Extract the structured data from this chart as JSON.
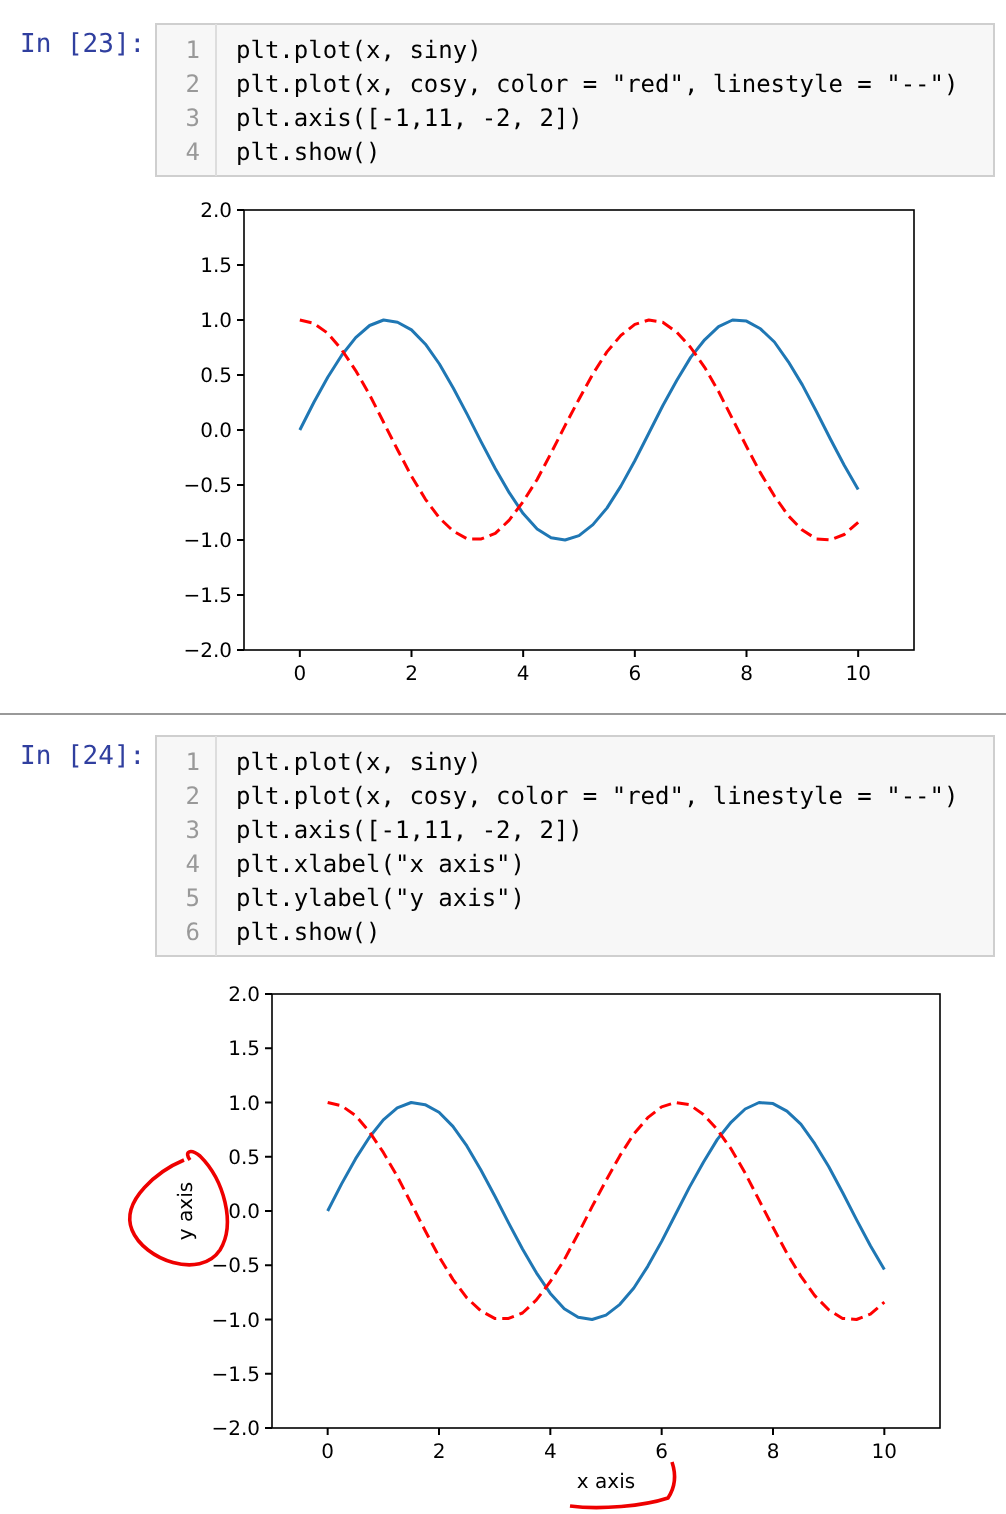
{
  "chart_data": [
    {
      "type": "line",
      "annotations": [
        "In [23]:",
        "1",
        "2",
        "3",
        "4",
        "plt.plot(x, siny)",
        "plt.plot(x, cosy, color = \"red\", linestyle = \"--\")",
        "plt.axis([-1,11, -2, 2])",
        "plt.show()"
      ],
      "x": [
        0,
        0.25,
        0.5,
        0.75,
        1,
        1.25,
        1.5,
        1.75,
        2,
        2.25,
        2.5,
        2.75,
        3,
        3.25,
        3.5,
        3.75,
        4,
        4.25,
        4.5,
        4.75,
        5,
        5.25,
        5.5,
        5.75,
        6,
        6.25,
        6.5,
        6.75,
        7,
        7.25,
        7.5,
        7.75,
        8,
        8.25,
        8.5,
        8.75,
        9,
        9.25,
        9.5,
        9.75,
        10
      ],
      "series": [
        {
          "color": "#1f77b4",
          "line_style": "solid",
          "values": [
            0,
            0.25,
            0.48,
            0.68,
            0.84,
            0.95,
            1,
            0.98,
            0.91,
            0.78,
            0.6,
            0.38,
            0.14,
            -0.11,
            -0.35,
            -0.57,
            -0.76,
            -0.9,
            -0.98,
            -1,
            -0.96,
            -0.86,
            -0.71,
            -0.51,
            -0.28,
            -0.03,
            0.22,
            0.45,
            0.66,
            0.82,
            0.94,
            1,
            0.99,
            0.92,
            0.8,
            0.62,
            0.41,
            0.17,
            -0.08,
            -0.32,
            -0.54
          ]
        },
        {
          "color": "#ff0000",
          "line_style": "dashed",
          "values": [
            1,
            0.97,
            0.88,
            0.73,
            0.54,
            0.32,
            0.07,
            -0.18,
            -0.42,
            -0.63,
            -0.8,
            -0.92,
            -0.99,
            -0.99,
            -0.94,
            -0.82,
            -0.65,
            -0.45,
            -0.21,
            0.04,
            0.28,
            0.51,
            0.71,
            0.86,
            0.96,
            1,
            0.98,
            0.89,
            0.75,
            0.57,
            0.35,
            0.1,
            -0.15,
            -0.39,
            -0.6,
            -0.78,
            -0.91,
            -0.99,
            -1,
            -0.95,
            -0.84
          ]
        }
      ],
      "xlim": [
        -1,
        11
      ],
      "ylim": [
        -2,
        2
      ],
      "xticks": [
        0,
        2,
        4,
        6,
        8,
        10
      ],
      "yticks": [
        {
          "value": -2,
          "label": "−2.0"
        },
        {
          "value": -1.5,
          "label": "−1.5"
        },
        {
          "value": -1,
          "label": "−1.0"
        },
        {
          "value": -0.5,
          "label": "−0.5"
        },
        {
          "value": 0,
          "label": "0.0"
        },
        {
          "value": 0.5,
          "label": "0.5"
        },
        {
          "value": 1,
          "label": "1.0"
        },
        {
          "value": 1.5,
          "label": "1.5"
        },
        {
          "value": 2,
          "label": "2.0"
        }
      ],
      "grid": false
    },
    {
      "type": "line",
      "xlabel": "x axis",
      "ylabel": "y axis",
      "annotations": [
        "In [24]:",
        "1",
        "2",
        "3",
        "4",
        "5",
        "6",
        "plt.plot(x, siny)",
        "plt.plot(x, cosy, color = \"red\", linestyle = \"--\")",
        "plt.axis([-1,11, -2, 2])",
        "plt.xlabel(\"x axis\")",
        "plt.ylabel(\"y axis\")",
        "plt.show()"
      ],
      "x": [
        0,
        0.25,
        0.5,
        0.75,
        1,
        1.25,
        1.5,
        1.75,
        2,
        2.25,
        2.5,
        2.75,
        3,
        3.25,
        3.5,
        3.75,
        4,
        4.25,
        4.5,
        4.75,
        5,
        5.25,
        5.5,
        5.75,
        6,
        6.25,
        6.5,
        6.75,
        7,
        7.25,
        7.5,
        7.75,
        8,
        8.25,
        8.5,
        8.75,
        9,
        9.25,
        9.5,
        9.75,
        10
      ],
      "series": [
        {
          "color": "#1f77b4",
          "line_style": "solid",
          "values": [
            0,
            0.25,
            0.48,
            0.68,
            0.84,
            0.95,
            1,
            0.98,
            0.91,
            0.78,
            0.6,
            0.38,
            0.14,
            -0.11,
            -0.35,
            -0.57,
            -0.76,
            -0.9,
            -0.98,
            -1,
            -0.96,
            -0.86,
            -0.71,
            -0.51,
            -0.28,
            -0.03,
            0.22,
            0.45,
            0.66,
            0.82,
            0.94,
            1,
            0.99,
            0.92,
            0.8,
            0.62,
            0.41,
            0.17,
            -0.08,
            -0.32,
            -0.54
          ]
        },
        {
          "color": "#ff0000",
          "line_style": "dashed",
          "values": [
            1,
            0.97,
            0.88,
            0.73,
            0.54,
            0.32,
            0.07,
            -0.18,
            -0.42,
            -0.63,
            -0.8,
            -0.92,
            -0.99,
            -0.99,
            -0.94,
            -0.82,
            -0.65,
            -0.45,
            -0.21,
            0.04,
            0.28,
            0.51,
            0.71,
            0.86,
            0.96,
            1,
            0.98,
            0.89,
            0.75,
            0.57,
            0.35,
            0.1,
            -0.15,
            -0.39,
            -0.6,
            -0.78,
            -0.91,
            -0.99,
            -1,
            -0.95,
            -0.84
          ]
        }
      ],
      "xlim": [
        -1,
        11
      ],
      "ylim": [
        -2,
        2
      ],
      "xticks": [
        0,
        2,
        4,
        6,
        8,
        10
      ],
      "yticks": [
        {
          "value": -2,
          "label": "−2.0"
        },
        {
          "value": -1.5,
          "label": "−1.5"
        },
        {
          "value": -1,
          "label": "−1.0"
        },
        {
          "value": -0.5,
          "label": "−0.5"
        },
        {
          "value": 0,
          "label": "0.0"
        },
        {
          "value": 0.5,
          "label": "0.5"
        },
        {
          "value": 1,
          "label": "1.0"
        },
        {
          "value": 1.5,
          "label": "1.5"
        },
        {
          "value": 2,
          "label": "2.0"
        }
      ],
      "grid": false
    }
  ]
}
